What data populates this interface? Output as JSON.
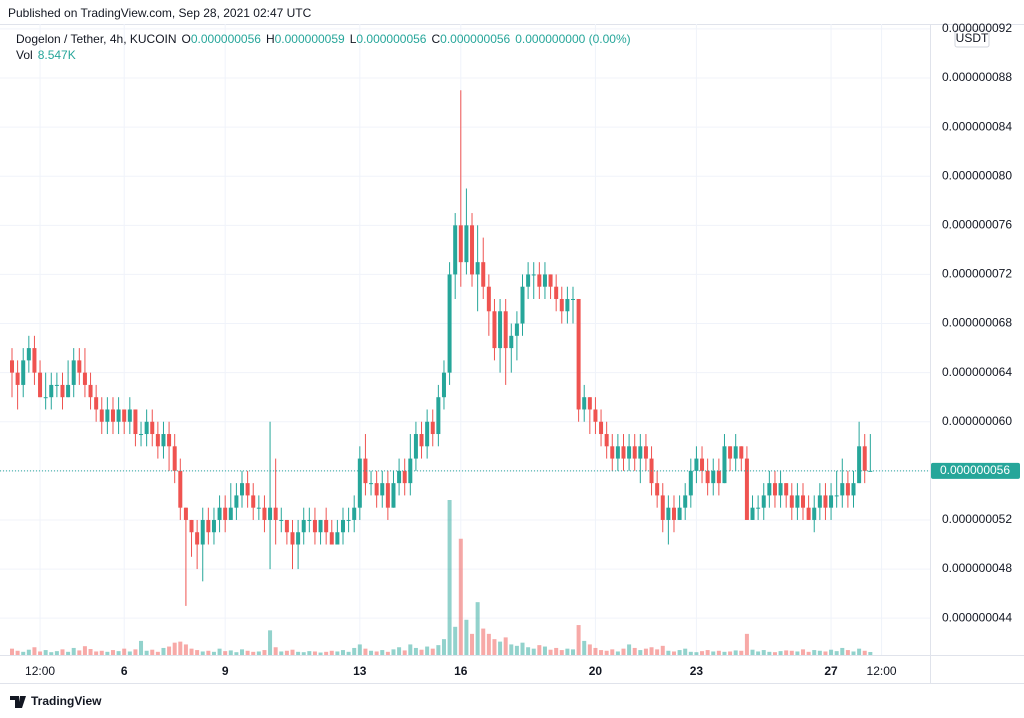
{
  "header": {
    "published": "Published on TradingView.com, Sep 28, 2021 02:47 UTC",
    "symbol": "Dogelon / Tether, 4h, KUCOIN",
    "ohlc": [
      {
        "key": "O",
        "value": "0.000000056"
      },
      {
        "key": "H",
        "value": "0.000000059"
      },
      {
        "key": "L",
        "value": "0.000000056"
      },
      {
        "key": "C",
        "value": "0.000000056"
      }
    ],
    "change": "0.000000000 (0.00%)",
    "volume_label": "Vol",
    "volume_value": "8.547K"
  },
  "chart_data": {
    "type": "candlestick",
    "categories": [
      null,
      null,
      null,
      null,
      null,
      "12:00",
      null,
      null,
      null,
      null,
      null,
      null,
      null,
      null,
      null,
      null,
      null,
      null,
      null,
      null,
      "6",
      null,
      null,
      null,
      null,
      null,
      null,
      null,
      null,
      null,
      null,
      null,
      null,
      null,
      null,
      null,
      null,
      null,
      "9",
      null,
      null,
      null,
      null,
      null,
      null,
      null,
      null,
      null,
      null,
      null,
      null,
      null,
      null,
      null,
      null,
      null,
      null,
      null,
      null,
      null,
      null,
      null,
      "13",
      null,
      null,
      null,
      null,
      null,
      null,
      null,
      null,
      null,
      null,
      null,
      null,
      null,
      null,
      null,
      null,
      null,
      "16",
      null,
      null,
      null,
      null,
      null,
      null,
      null,
      null,
      null,
      null,
      null,
      null,
      null,
      null,
      null,
      null,
      null,
      null,
      null,
      null,
      null,
      null,
      null,
      "20",
      null,
      null,
      null,
      null,
      null,
      null,
      null,
      null,
      null,
      null,
      null,
      null,
      null,
      null,
      null,
      null,
      null,
      "23",
      null,
      null,
      null,
      null,
      null,
      null,
      null,
      null,
      null,
      null,
      null,
      null,
      null,
      null,
      null,
      null,
      null,
      null,
      null,
      null,
      null,
      null,
      null,
      "27",
      null,
      null,
      null,
      null,
      null,
      null,
      null,
      null,
      "12:00"
    ],
    "open": [
      6.5e-08,
      6.4e-08,
      6.3e-08,
      6.5e-08,
      6.6e-08,
      6.4e-08,
      6.2e-08,
      6.2e-08,
      6.3e-08,
      6.3e-08,
      6.2e-08,
      6.3e-08,
      6.5e-08,
      6.4e-08,
      6.3e-08,
      6.2e-08,
      6.1e-08,
      6e-08,
      6.1e-08,
      6e-08,
      6.1e-08,
      6e-08,
      6.1e-08,
      5.9e-08,
      5.9e-08,
      6e-08,
      5.9e-08,
      5.8e-08,
      5.9e-08,
      5.8e-08,
      5.6e-08,
      5.3e-08,
      5.2e-08,
      5.1e-08,
      5e-08,
      5.2e-08,
      5.1e-08,
      5.2e-08,
      5.3e-08,
      5.2e-08,
      5.3e-08,
      5.4e-08,
      5.5e-08,
      5.4e-08,
      5.3e-08,
      5.3e-08,
      5.2e-08,
      5.3e-08,
      5.2e-08,
      5.2e-08,
      5.1e-08,
      5e-08,
      5.1e-08,
      5.2e-08,
      5.2e-08,
      5.1e-08,
      5.2e-08,
      5.1e-08,
      5e-08,
      5.1e-08,
      5.2e-08,
      5.2e-08,
      5.3e-08,
      5.7e-08,
      5.5e-08,
      5.5e-08,
      5.4e-08,
      5.5e-08,
      5.3e-08,
      5.5e-08,
      5.6e-08,
      5.5e-08,
      5.7e-08,
      5.9e-08,
      5.8e-08,
      6e-08,
      5.9e-08,
      6.2e-08,
      6.4e-08,
      7.2e-08,
      7.6e-08,
      7.3e-08,
      7.6e-08,
      7.2e-08,
      7.3e-08,
      7.1e-08,
      6.9e-08,
      6.6e-08,
      6.9e-08,
      6.6e-08,
      6.7e-08,
      6.8e-08,
      7.1e-08,
      7.2e-08,
      7.2e-08,
      7.1e-08,
      7.2e-08,
      7.1e-08,
      7e-08,
      6.9e-08,
      7e-08,
      7e-08,
      6.1e-08,
      6.2e-08,
      6.1e-08,
      6e-08,
      5.9e-08,
      5.8e-08,
      5.7e-08,
      5.8e-08,
      5.7e-08,
      5.8e-08,
      5.7e-08,
      5.8e-08,
      5.7e-08,
      5.5e-08,
      5.4e-08,
      5.2e-08,
      5.3e-08,
      5.2e-08,
      5.3e-08,
      5.4e-08,
      5.6e-08,
      5.7e-08,
      5.6e-08,
      5.5e-08,
      5.6e-08,
      5.5e-08,
      5.8e-08,
      5.7e-08,
      5.8e-08,
      5.7e-08,
      5.2e-08,
      5.3e-08,
      5.3e-08,
      5.4e-08,
      5.5e-08,
      5.4e-08,
      5.5e-08,
      5.4e-08,
      5.3e-08,
      5.4e-08,
      5.3e-08,
      5.2e-08,
      5.3e-08,
      5.4e-08,
      5.3e-08,
      5.4e-08,
      5.4e-08,
      5.5e-08,
      5.4e-08,
      5.5e-08,
      5.8e-08,
      5.6e-08,
      null,
      null
    ],
    "high": [
      6.6e-08,
      6.5e-08,
      6.6e-08,
      6.7e-08,
      6.7e-08,
      6.5e-08,
      6.4e-08,
      6.4e-08,
      6.4e-08,
      6.4e-08,
      6.5e-08,
      6.6e-08,
      6.6e-08,
      6.6e-08,
      6.4e-08,
      6.3e-08,
      6.2e-08,
      6.2e-08,
      6.2e-08,
      6.2e-08,
      6.1e-08,
      6.2e-08,
      6.1e-08,
      6e-08,
      6.1e-08,
      6.1e-08,
      6e-08,
      6e-08,
      6e-08,
      5.9e-08,
      5.7e-08,
      5.3e-08,
      5.2e-08,
      5.2e-08,
      5.3e-08,
      5.3e-08,
      5.3e-08,
      5.4e-08,
      5.4e-08,
      5.5e-08,
      5.5e-08,
      5.6e-08,
      5.6e-08,
      5.5e-08,
      5.4e-08,
      5.4e-08,
      6e-08,
      5.7e-08,
      5.3e-08,
      5.2e-08,
      5.2e-08,
      5.2e-08,
      5.3e-08,
      5.3e-08,
      5.3e-08,
      5.2e-08,
      5.3e-08,
      5.2e-08,
      5.2e-08,
      5.3e-08,
      5.3e-08,
      5.4e-08,
      5.8e-08,
      5.9e-08,
      5.6e-08,
      5.6e-08,
      5.6e-08,
      5.6e-08,
      5.6e-08,
      5.7e-08,
      5.7e-08,
      5.9e-08,
      6e-08,
      6e-08,
      6.1e-08,
      6.1e-08,
      6.3e-08,
      6.5e-08,
      7.3e-08,
      7.7e-08,
      8.7e-08,
      7.9e-08,
      7.7e-08,
      7.6e-08,
      7.5e-08,
      7.2e-08,
      7e-08,
      7e-08,
      7e-08,
      6.8e-08,
      6.9e-08,
      7.2e-08,
      7.3e-08,
      7.3e-08,
      7.3e-08,
      7.3e-08,
      7.2e-08,
      7.2e-08,
      7.1e-08,
      7.1e-08,
      7.1e-08,
      7e-08,
      6.3e-08,
      6.2e-08,
      6.2e-08,
      6.1e-08,
      6e-08,
      5.9e-08,
      5.9e-08,
      5.9e-08,
      5.9e-08,
      5.9e-08,
      5.9e-08,
      5.9e-08,
      5.8e-08,
      5.6e-08,
      5.5e-08,
      5.4e-08,
      5.4e-08,
      5.4e-08,
      5.5e-08,
      5.7e-08,
      5.8e-08,
      5.8e-08,
      5.7e-08,
      5.7e-08,
      5.7e-08,
      5.9e-08,
      5.8e-08,
      5.9e-08,
      5.8e-08,
      5.8e-08,
      5.4e-08,
      5.4e-08,
      5.5e-08,
      5.6e-08,
      5.6e-08,
      5.6e-08,
      5.5e-08,
      5.5e-08,
      5.5e-08,
      5.5e-08,
      5.4e-08,
      5.4e-08,
      5.5e-08,
      5.5e-08,
      5.5e-08,
      5.6e-08,
      5.7e-08,
      5.6e-08,
      5.6e-08,
      6e-08,
      5.9e-08,
      5.9e-08,
      null,
      null
    ],
    "low": [
      6.2e-08,
      6.1e-08,
      6.2e-08,
      6.4e-08,
      6.3e-08,
      6.2e-08,
      6.1e-08,
      6.1e-08,
      6.2e-08,
      6.1e-08,
      6.2e-08,
      6.2e-08,
      6.3e-08,
      6.2e-08,
      6.1e-08,
      6e-08,
      5.9e-08,
      5.9e-08,
      5.9e-08,
      5.9e-08,
      5.9e-08,
      5.9e-08,
      5.8e-08,
      5.8e-08,
      5.8e-08,
      5.8e-08,
      5.7e-08,
      5.7e-08,
      5.6e-08,
      5.5e-08,
      5.2e-08,
      4.5e-08,
      4.9e-08,
      4.8e-08,
      4.7e-08,
      5e-08,
      5e-08,
      5.1e-08,
      5.1e-08,
      5.2e-08,
      5.2e-08,
      5.3e-08,
      5.3e-08,
      5.2e-08,
      5.2e-08,
      5.1e-08,
      4.8e-08,
      5e-08,
      5.1e-08,
      5e-08,
      4.8e-08,
      4.8e-08,
      5e-08,
      5.1e-08,
      5e-08,
      5e-08,
      5e-08,
      5e-08,
      5e-08,
      5e-08,
      5.1e-08,
      5.1e-08,
      5.2e-08,
      5.4e-08,
      5.4e-08,
      5.3e-08,
      5.3e-08,
      5.2e-08,
      5.3e-08,
      5.4e-08,
      5.4e-08,
      5.4e-08,
      5.6e-08,
      5.7e-08,
      5.7e-08,
      5.8e-08,
      5.8e-08,
      6.1e-08,
      6.3e-08,
      7e-08,
      7.1e-08,
      7.2e-08,
      7.1e-08,
      6.9e-08,
      7e-08,
      6.7e-08,
      6.5e-08,
      6.4e-08,
      6.3e-08,
      6.4e-08,
      6.5e-08,
      6.7e-08,
      7e-08,
      7e-08,
      7e-08,
      7e-08,
      7e-08,
      6.9e-08,
      6.8e-08,
      6.8e-08,
      6.8e-08,
      6e-08,
      6e-08,
      5.9e-08,
      5.9e-08,
      5.8e-08,
      5.7e-08,
      5.6e-08,
      5.6e-08,
      5.6e-08,
      5.6e-08,
      5.6e-08,
      5.5e-08,
      5.6e-08,
      5.4e-08,
      5.3e-08,
      5.1e-08,
      5e-08,
      5.1e-08,
      5.2e-08,
      5.2e-08,
      5.3e-08,
      5.5e-08,
      5.5e-08,
      5.4e-08,
      5.4e-08,
      5.4e-08,
      5.5e-08,
      5.6e-08,
      5.6e-08,
      5.6e-08,
      5.2e-08,
      5.2e-08,
      5.2e-08,
      5.2e-08,
      5.3e-08,
      5.3e-08,
      5.3e-08,
      5.3e-08,
      5.2e-08,
      5.2e-08,
      5.2e-08,
      5.2e-08,
      5.1e-08,
      5.2e-08,
      5.2e-08,
      5.2e-08,
      5.3e-08,
      5.3e-08,
      5.3e-08,
      5.3e-08,
      5.5e-08,
      5.5e-08,
      5.6e-08,
      null,
      null
    ],
    "close": [
      6.4e-08,
      6.3e-08,
      6.5e-08,
      6.6e-08,
      6.4e-08,
      6.2e-08,
      6.2e-08,
      6.3e-08,
      6.3e-08,
      6.2e-08,
      6.3e-08,
      6.5e-08,
      6.4e-08,
      6.3e-08,
      6.2e-08,
      6.1e-08,
      6e-08,
      6.1e-08,
      6e-08,
      6.1e-08,
      6e-08,
      6.1e-08,
      5.9e-08,
      5.9e-08,
      6e-08,
      5.9e-08,
      5.8e-08,
      5.9e-08,
      5.8e-08,
      5.6e-08,
      5.3e-08,
      5.2e-08,
      5.1e-08,
      5e-08,
      5.2e-08,
      5.1e-08,
      5.2e-08,
      5.3e-08,
      5.2e-08,
      5.3e-08,
      5.4e-08,
      5.5e-08,
      5.4e-08,
      5.3e-08,
      5.3e-08,
      5.2e-08,
      5.3e-08,
      5.2e-08,
      5.2e-08,
      5.1e-08,
      5e-08,
      5.1e-08,
      5.2e-08,
      5.2e-08,
      5.1e-08,
      5.2e-08,
      5.1e-08,
      5e-08,
      5.1e-08,
      5.2e-08,
      5.2e-08,
      5.3e-08,
      5.7e-08,
      5.5e-08,
      5.5e-08,
      5.4e-08,
      5.5e-08,
      5.3e-08,
      5.5e-08,
      5.6e-08,
      5.5e-08,
      5.7e-08,
      5.9e-08,
      5.8e-08,
      6e-08,
      5.9e-08,
      6.2e-08,
      6.4e-08,
      7.2e-08,
      7.6e-08,
      7.3e-08,
      7.6e-08,
      7.2e-08,
      7.3e-08,
      7.1e-08,
      6.9e-08,
      6.6e-08,
      6.9e-08,
      6.6e-08,
      6.7e-08,
      6.8e-08,
      7.1e-08,
      7.2e-08,
      7.2e-08,
      7.1e-08,
      7.2e-08,
      7.1e-08,
      7e-08,
      6.9e-08,
      7e-08,
      7e-08,
      6.1e-08,
      6.2e-08,
      6.1e-08,
      6e-08,
      5.9e-08,
      5.8e-08,
      5.7e-08,
      5.8e-08,
      5.7e-08,
      5.8e-08,
      5.7e-08,
      5.8e-08,
      5.7e-08,
      5.5e-08,
      5.4e-08,
      5.2e-08,
      5.3e-08,
      5.2e-08,
      5.3e-08,
      5.4e-08,
      5.6e-08,
      5.7e-08,
      5.6e-08,
      5.5e-08,
      5.6e-08,
      5.5e-08,
      5.8e-08,
      5.7e-08,
      5.8e-08,
      5.7e-08,
      5.2e-08,
      5.3e-08,
      5.3e-08,
      5.4e-08,
      5.5e-08,
      5.4e-08,
      5.5e-08,
      5.4e-08,
      5.3e-08,
      5.4e-08,
      5.3e-08,
      5.2e-08,
      5.3e-08,
      5.4e-08,
      5.3e-08,
      5.4e-08,
      5.4e-08,
      5.5e-08,
      5.4e-08,
      5.5e-08,
      5.8e-08,
      5.6e-08,
      5.6e-08,
      null,
      null
    ],
    "volume": [
      18000,
      12000,
      9000,
      15000,
      22000,
      10000,
      14000,
      8000,
      11000,
      16000,
      9000,
      20000,
      13000,
      25000,
      17000,
      10000,
      12000,
      9000,
      14000,
      11000,
      18000,
      10000,
      16000,
      40000,
      12000,
      15000,
      9000,
      20000,
      24000,
      35000,
      38000,
      30000,
      18000,
      14000,
      10000,
      12000,
      9000,
      18000,
      11000,
      13000,
      8000,
      16000,
      12000,
      9000,
      10000,
      14000,
      70000,
      22000,
      10000,
      12000,
      15000,
      9000,
      8000,
      11000,
      10000,
      7000,
      9000,
      12000,
      10000,
      14000,
      9000,
      20000,
      30000,
      18000,
      12000,
      10000,
      14000,
      9000,
      16000,
      22000,
      13000,
      30000,
      20000,
      15000,
      24000,
      18000,
      28000,
      45000,
      440000,
      80000,
      330000,
      100000,
      60000,
      150000,
      75000,
      60000,
      45000,
      38000,
      50000,
      30000,
      26000,
      35000,
      22000,
      18000,
      28000,
      24000,
      15000,
      20000,
      14000,
      18000,
      16000,
      85000,
      40000,
      30000,
      20000,
      14000,
      12000,
      16000,
      10000,
      18000,
      30000,
      20000,
      14000,
      18000,
      22000,
      16000,
      26000,
      12000,
      10000,
      14000,
      18000,
      9000,
      8000,
      11000,
      14000,
      10000,
      12000,
      9000,
      10000,
      13000,
      12000,
      60000,
      15000,
      10000,
      14000,
      9000,
      8000,
      11000,
      13000,
      12000,
      10000,
      16000,
      9000,
      14000,
      12000,
      10000,
      15000,
      11000,
      20000,
      14000,
      10000,
      18000,
      12000,
      8547,
      null,
      null
    ],
    "currency": "USDT",
    "ylim": [
      4.1e-08,
      9.24e-08
    ],
    "yticks": [
      {
        "value": 4.4e-08,
        "label": "0.000000044"
      },
      {
        "value": 4.8e-08,
        "label": "0.000000048"
      },
      {
        "value": 5.2e-08,
        "label": "0.000000052"
      },
      {
        "value": 5.6e-08,
        "label": "0.000000056"
      },
      {
        "value": 6e-08,
        "label": "0.000000060"
      },
      {
        "value": 6.4e-08,
        "label": "0.000000064"
      },
      {
        "value": 6.8e-08,
        "label": "0.000000068"
      },
      {
        "value": 7.2e-08,
        "label": "0.000000072"
      },
      {
        "value": 7.6e-08,
        "label": "0.000000076"
      },
      {
        "value": 8e-08,
        "label": "0.000000080"
      },
      {
        "value": 8.4e-08,
        "label": "0.000000084"
      },
      {
        "value": 8.8e-08,
        "label": "0.000000088"
      },
      {
        "value": 9.2e-08,
        "label": "0.000000092"
      }
    ],
    "last_price": {
      "value": 5.6e-08,
      "label": "0.000000056"
    },
    "grid": true,
    "up_color": "#26a69a",
    "down_color": "#ef5350"
  },
  "footer": {
    "brand": "TradingView"
  }
}
